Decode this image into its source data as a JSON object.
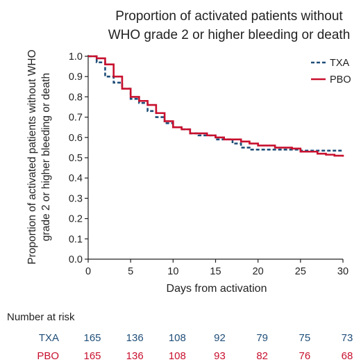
{
  "chart_data": {
    "type": "line",
    "subtype": "kaplan-meier-step",
    "title_lines": [
      "Proportion of activated patients without",
      "WHO grade 2 or higher bleeding or death"
    ],
    "xlabel": "Days from activation",
    "ylabel_lines": [
      "Proportion of activated patients without WHO",
      "grade 2 or higher bleeding or death"
    ],
    "xlim": [
      0,
      30
    ],
    "ylim": [
      0,
      1.0
    ],
    "x_ticks": [
      0,
      5,
      10,
      15,
      20,
      25,
      30
    ],
    "y_ticks": [
      0.0,
      0.1,
      0.2,
      0.3,
      0.4,
      0.5,
      0.6,
      0.7,
      0.8,
      0.9,
      1.0
    ],
    "y_tick_labels": [
      "0.0",
      "0.1",
      "0.2",
      "0.3",
      "0.4",
      "0.5",
      "0.6",
      "0.7",
      "0.8",
      "0.9",
      "1.0"
    ],
    "grid": false,
    "legend": "top-right",
    "series": [
      {
        "name": "TXA",
        "color": "#1f4e79",
        "dash": "dashed",
        "steps": [
          [
            0,
            1.0
          ],
          [
            1,
            0.97
          ],
          [
            2,
            0.9
          ],
          [
            3,
            0.87
          ],
          [
            4,
            0.84
          ],
          [
            5,
            0.79
          ],
          [
            6,
            0.77
          ],
          [
            7,
            0.73
          ],
          [
            8,
            0.7
          ],
          [
            9,
            0.67
          ],
          [
            10,
            0.65
          ],
          [
            11,
            0.64
          ],
          [
            12,
            0.62
          ],
          [
            13,
            0.61
          ],
          [
            15,
            0.59
          ],
          [
            17,
            0.57
          ],
          [
            18,
            0.55
          ],
          [
            19,
            0.54
          ],
          [
            25,
            0.535
          ],
          [
            30,
            0.535
          ]
        ]
      },
      {
        "name": "PBO",
        "color": "#c8102e",
        "dash": "solid",
        "steps": [
          [
            0,
            1.0
          ],
          [
            1,
            0.99
          ],
          [
            2,
            0.96
          ],
          [
            3,
            0.9
          ],
          [
            4,
            0.84
          ],
          [
            5,
            0.8
          ],
          [
            6,
            0.78
          ],
          [
            7,
            0.76
          ],
          [
            8,
            0.72
          ],
          [
            9,
            0.68
          ],
          [
            10,
            0.65
          ],
          [
            11,
            0.64
          ],
          [
            12,
            0.62
          ],
          [
            14,
            0.61
          ],
          [
            15,
            0.6
          ],
          [
            16,
            0.59
          ],
          [
            18,
            0.58
          ],
          [
            19,
            0.57
          ],
          [
            20,
            0.56
          ],
          [
            22,
            0.55
          ],
          [
            24,
            0.545
          ],
          [
            25,
            0.53
          ],
          [
            27,
            0.52
          ],
          [
            28,
            0.515
          ],
          [
            29,
            0.51
          ],
          [
            30,
            0.505
          ]
        ]
      }
    ],
    "risk_table": {
      "title": "Number at risk",
      "times": [
        0,
        5,
        10,
        15,
        20,
        25,
        30
      ],
      "rows": [
        {
          "label": "TXA",
          "color": "#1f4e79",
          "values": [
            "165",
            "136",
            "108",
            "92",
            "79",
            "75",
            "73"
          ]
        },
        {
          "label": "PBO",
          "color": "#c8102e",
          "values": [
            "165",
            "136",
            "108",
            "93",
            "82",
            "76",
            "68"
          ]
        }
      ]
    }
  }
}
